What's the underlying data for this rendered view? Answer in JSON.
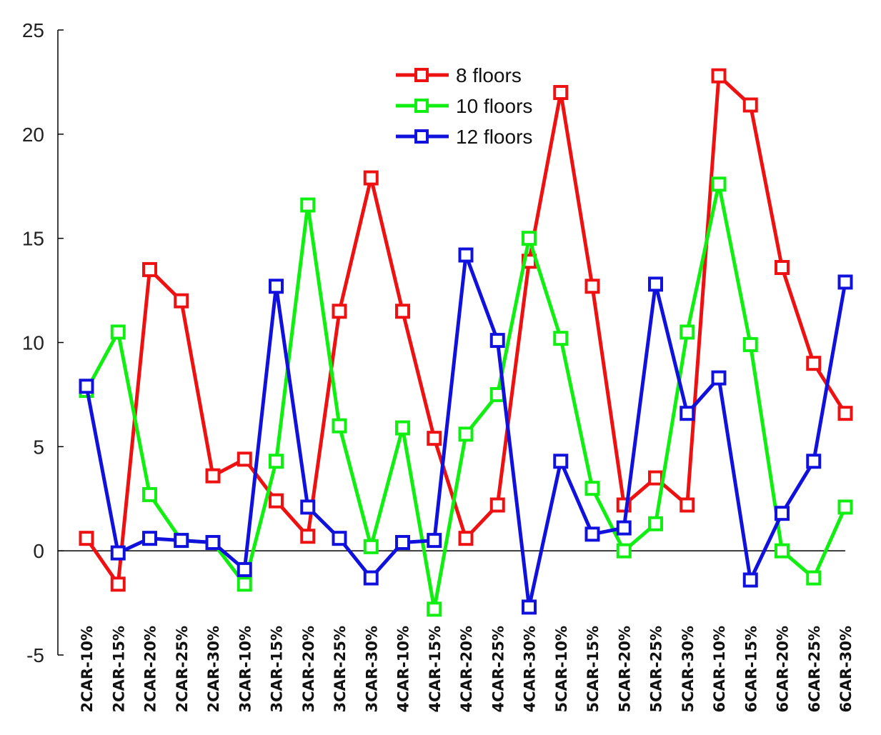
{
  "chart_data": {
    "type": "line",
    "categories": [
      "2CAR-10%",
      "2CAR-15%",
      "2CAR-20%",
      "2CAR-25%",
      "2CAR-30%",
      "3CAR-10%",
      "3CAR-15%",
      "3CAR-20%",
      "3CAR-25%",
      "3CAR-30%",
      "4CAR-10%",
      "4CAR-15%",
      "4CAR-20%",
      "4CAR-25%",
      "4CAR-30%",
      "5CAR-10%",
      "5CAR-15%",
      "5CAR-20%",
      "5CAR-25%",
      "5CAR-30%",
      "6CAR-10%",
      "6CAR-15%",
      "6CAR-20%",
      "6CAR-25%",
      "6CAR-30%"
    ],
    "series": [
      {
        "name": "8 floors",
        "color": "#ee1111",
        "values": [
          0.6,
          -1.6,
          13.5,
          12.0,
          3.6,
          4.4,
          2.4,
          0.7,
          11.5,
          17.9,
          11.5,
          5.4,
          0.6,
          2.2,
          13.9,
          22.0,
          12.7,
          2.2,
          3.5,
          2.2,
          22.8,
          21.4,
          13.6,
          9.0,
          6.6
        ]
      },
      {
        "name": "10 floors",
        "color": "#11ee11",
        "values": [
          7.7,
          10.5,
          2.7,
          0.5,
          0.4,
          -1.6,
          4.3,
          16.6,
          6.0,
          0.2,
          5.9,
          -2.8,
          5.6,
          7.5,
          15.0,
          10.2,
          3.0,
          0.0,
          1.3,
          10.5,
          17.6,
          9.9,
          0.0,
          -1.3,
          2.1
        ]
      },
      {
        "name": "12 floors",
        "color": "#1111dd",
        "values": [
          7.9,
          -0.1,
          0.6,
          0.5,
          0.4,
          -0.9,
          12.7,
          2.1,
          0.6,
          -1.3,
          0.4,
          0.5,
          14.2,
          10.1,
          -2.7,
          4.3,
          0.8,
          1.1,
          12.8,
          6.6,
          8.3,
          -1.4,
          1.8,
          4.3,
          12.9
        ]
      }
    ],
    "yticks": [
      "-5",
      "0",
      "5",
      "10",
      "15",
      "20",
      "25"
    ],
    "ylim": [
      -5,
      25
    ],
    "title": "",
    "xlabel": "",
    "ylabel": "",
    "legend_position": "top-center",
    "grid": false,
    "zero_line": true
  }
}
